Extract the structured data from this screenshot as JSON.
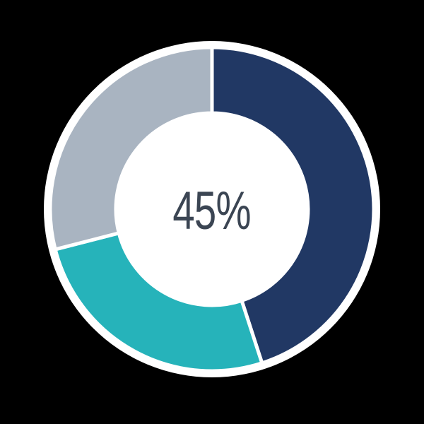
{
  "chart_data": {
    "type": "donut",
    "title": "",
    "center_label": "45%",
    "center_label_color": "#3b4553",
    "start_angle_deg": 0,
    "direction": "clockwise",
    "total": 100,
    "legend": "none",
    "ring_color": "#ffffff",
    "background_color": "#000000",
    "segments": [
      {
        "name": "navy",
        "value": 45,
        "color": "#213864"
      },
      {
        "name": "teal",
        "value": 26,
        "color": "#26b3ba"
      },
      {
        "name": "gray",
        "value": 29,
        "color": "#a9b4c1"
      }
    ]
  }
}
